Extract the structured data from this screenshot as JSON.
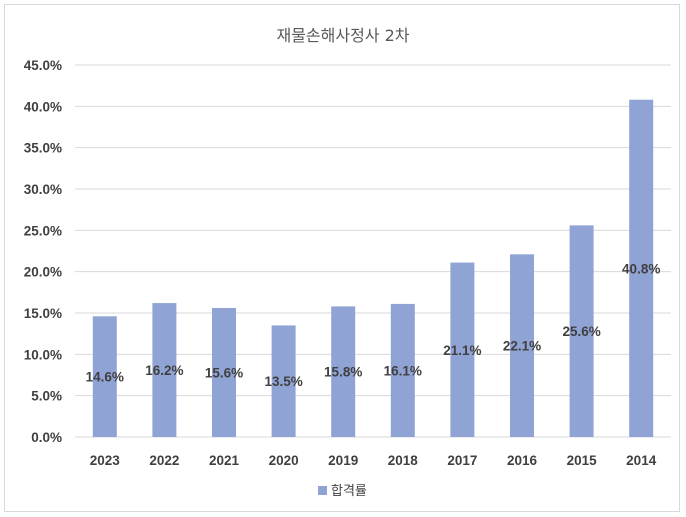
{
  "chart_data": {
    "type": "bar",
    "title": "재물손해사정사 2차",
    "xlabel": "",
    "ylabel": "",
    "categories": [
      "2023",
      "2022",
      "2021",
      "2020",
      "2019",
      "2018",
      "2017",
      "2016",
      "2015",
      "2014"
    ],
    "series": [
      {
        "name": "합격률",
        "values": [
          14.6,
          16.2,
          15.6,
          13.5,
          15.8,
          16.1,
          21.1,
          22.1,
          25.6,
          40.8
        ],
        "labels": [
          "14.6%",
          "16.2%",
          "15.6%",
          "13.5%",
          "15.8%",
          "16.1%",
          "21.1%",
          "22.1%",
          "25.6%",
          "40.8%"
        ]
      }
    ],
    "ylim": [
      0,
      45
    ],
    "ytick_values": [
      0,
      5,
      10,
      15,
      20,
      25,
      30,
      35,
      40,
      45
    ],
    "ytick_labels": [
      "0.0%",
      "5.0%",
      "10.0%",
      "15.0%",
      "20.0%",
      "25.0%",
      "30.0%",
      "35.0%",
      "40.0%",
      "45.0%"
    ],
    "grid": true,
    "legend_position": "bottom",
    "colors": {
      "bar": "#8FA3D4",
      "grid": "#D9D9D9",
      "text": "#404040",
      "title": "#595959"
    }
  }
}
